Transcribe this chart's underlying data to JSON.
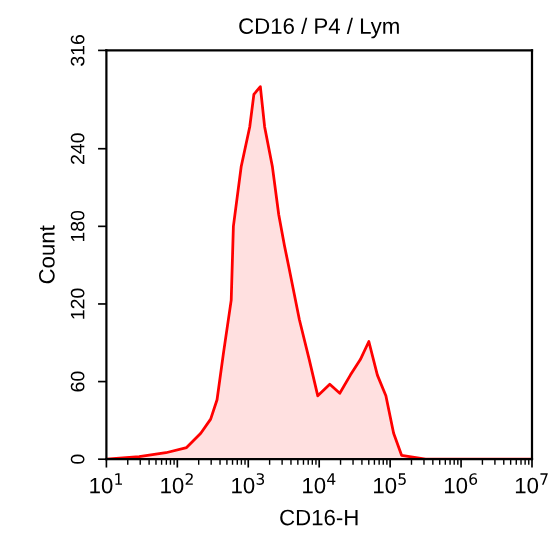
{
  "chart_data": {
    "type": "area",
    "title": "CD16 / P4 / Lym",
    "xlabel": "CD16-H",
    "ylabel": "Count",
    "x": [
      10,
      29,
      69,
      135,
      214,
      295,
      363,
      447,
      575,
      617,
      794,
      1050,
      1200,
      1480,
      1700,
      2190,
      2690,
      3240,
      3720,
      5250,
      7240,
      9550,
      14100,
      19500,
      27500,
      38000,
      50100,
      66100,
      87100,
      112000,
      145000,
      316000,
      10000000
    ],
    "series": [
      {
        "color": "#ff0000",
        "values": [
          0,
          2,
          5,
          9,
          20,
          31,
          46,
          82,
          123,
          180,
          226,
          257,
          282,
          288,
          257,
          226,
          189,
          165,
          149,
          108,
          77,
          49,
          58,
          51,
          65,
          77,
          91,
          65,
          49,
          20,
          3,
          0,
          0
        ]
      }
    ],
    "log": "x",
    "xlim": [
      10,
      10000000
    ],
    "xticks": [
      {
        "value": 10,
        "label": "10$^{1}$"
      },
      {
        "value": 100,
        "label": "10$^{2}$"
      },
      {
        "value": 1000,
        "label": "10$^{3}$"
      },
      {
        "value": 10000,
        "label": "10$^{4}$"
      },
      {
        "value": 100000,
        "label": "10$^{5}$"
      },
      {
        "value": 1000000,
        "label": "10$^{6}$"
      },
      {
        "value": 10000000,
        "label": "10$^{7}$"
      }
    ],
    "ylim": [
      0,
      316
    ],
    "yticks": [
      0,
      60,
      120,
      180,
      240,
      316
    ],
    "grid": false
  }
}
